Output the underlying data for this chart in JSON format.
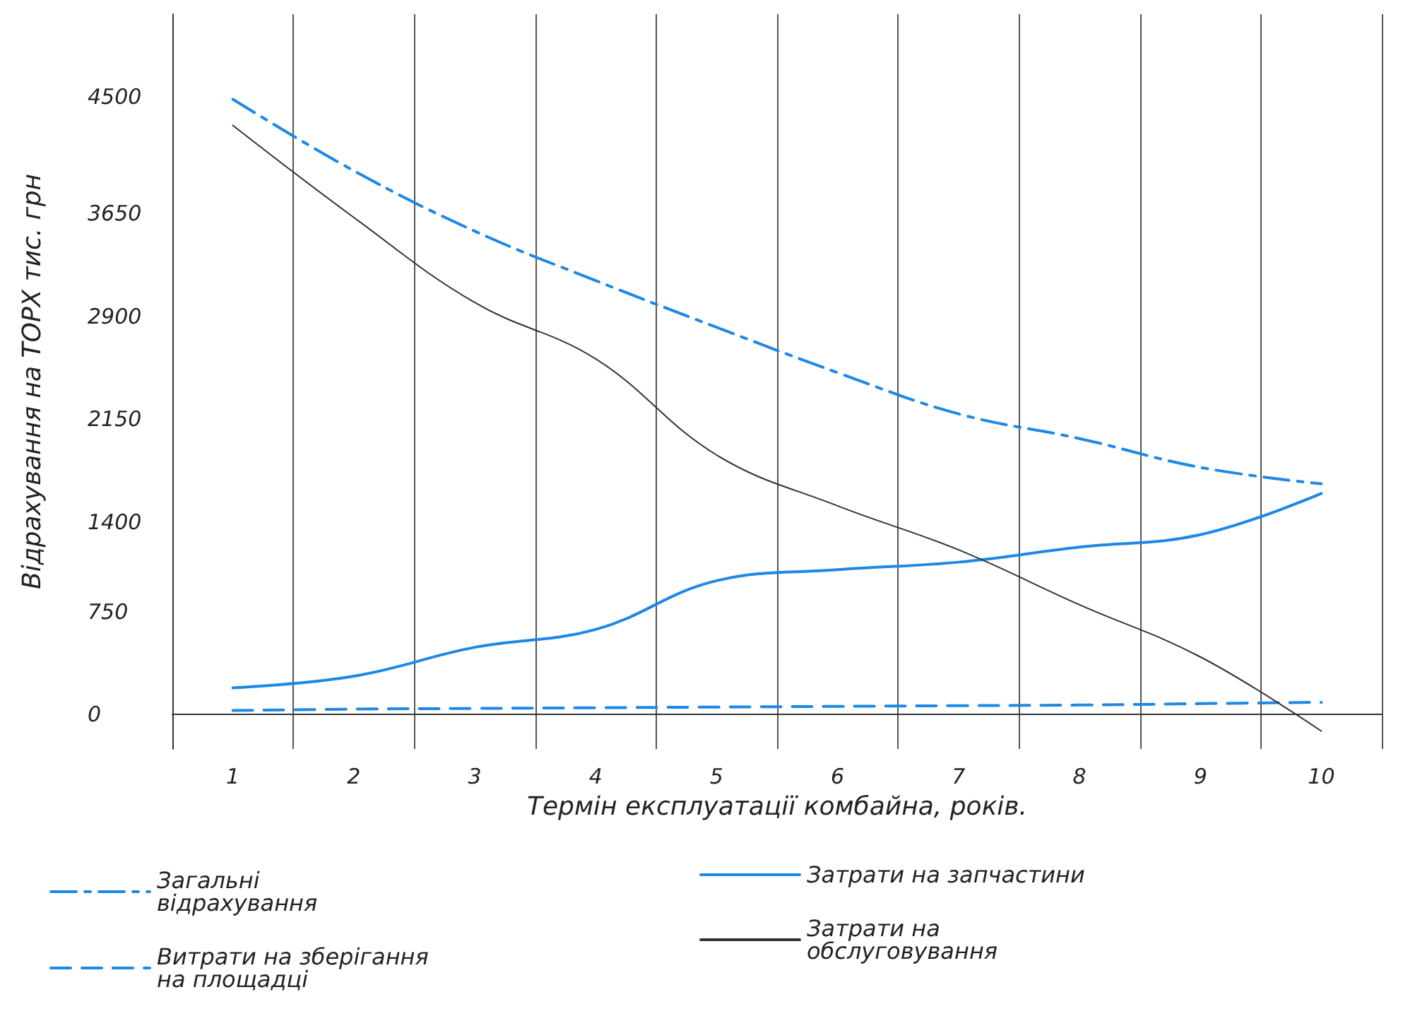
{
  "chart_data": {
    "type": "line",
    "xlabel": "Термін експлуатації комбайна, років.",
    "ylabel": "Відрахування на ТОРХ тис. грн",
    "categories": [
      "1",
      "2",
      "3",
      "4",
      "5",
      "6",
      "7",
      "8",
      "9",
      "10"
    ],
    "ylim": [
      -250,
      5100
    ],
    "yticks": [
      0,
      750,
      1400,
      2150,
      2900,
      3650,
      4500
    ],
    "grid": "x",
    "legend": "bottom",
    "marker": "none",
    "series": [
      {
        "name": "Загальні відрахування",
        "color": "#1e88e5",
        "line_style": "dashdot",
        "values": [
          4480,
          3960,
          3520,
          3160,
          2820,
          2490,
          2190,
          2010,
          1800,
          1680
        ]
      },
      {
        "name": "Витрати на зберігання на площадці",
        "color": "#1e88e5",
        "line_style": "dashed",
        "values": [
          30,
          40,
          45,
          50,
          55,
          60,
          65,
          70,
          80,
          90
        ]
      },
      {
        "name": "Затрати на запчастини",
        "color": "#1e88e5",
        "line_style": "solid",
        "values": [
          195,
          280,
          490,
          620,
          975,
          1055,
          1110,
          1220,
          1310,
          1610
        ]
      },
      {
        "name": "Затрати на обслуговування",
        "color": "#333333",
        "line_style": "solid",
        "values": [
          4290,
          3620,
          3000,
          2590,
          1890,
          1520,
          1200,
          800,
          420,
          -120
        ]
      }
    ]
  }
}
